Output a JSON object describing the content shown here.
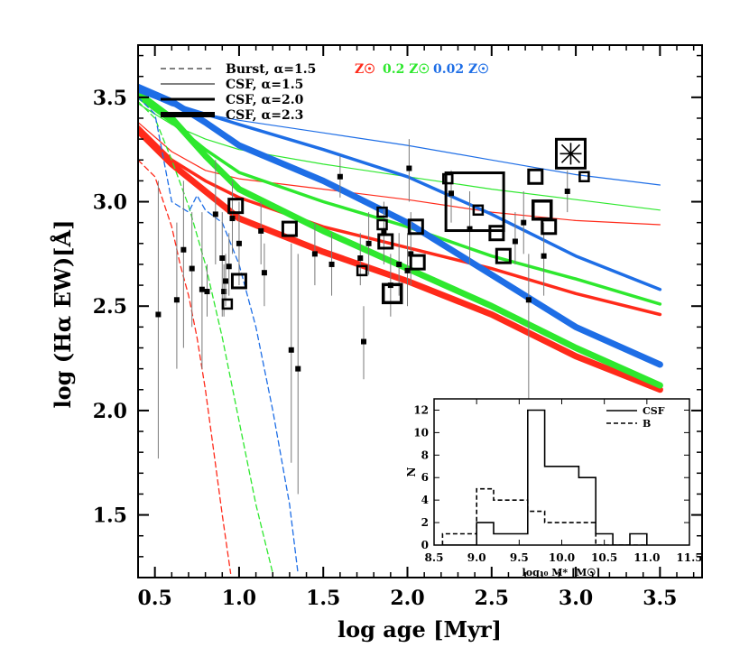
{
  "chart_data": [
    {
      "type": "line",
      "title": "",
      "xlabel": "log age [Myr]",
      "ylabel": "log (Hα EW)[Å]",
      "xlim": [
        0.4,
        3.75
      ],
      "ylim": [
        1.2,
        3.75
      ],
      "xticks": [
        0.5,
        1.0,
        1.5,
        2.0,
        2.5,
        3.0,
        3.5
      ],
      "xtick_labels": [
        "0.5",
        "1.0",
        "1.5",
        "2.0",
        "2.5",
        "3.0",
        "3.5"
      ],
      "yticks": [
        1.5,
        2.0,
        2.5,
        3.0,
        3.5
      ],
      "ytick_labels": [
        "1.5",
        "2.0",
        "2.5",
        "3.0",
        "3.5"
      ],
      "grid": false,
      "legend": {
        "placement": "top-left",
        "linestyle_entries": [
          "Burst, α=1.5",
          "CSF, α=1.5",
          "CSF, α=2.0",
          "CSF, α=2.3"
        ],
        "metallicity_entries": [
          {
            "label": "Z☉",
            "color": "#ff2a1a"
          },
          {
            "label": "0.2 Z☉",
            "color": "#2ee82e"
          },
          {
            "label": "0.02 Z☉",
            "color": "#1e6ee6"
          }
        ]
      },
      "colors": {
        "Z_sun": "#ff2a1a",
        "Z_0.2": "#2ee82e",
        "Z_0.02": "#1e6ee6",
        "data": "#000000",
        "errorbar": "#7a7a7a"
      },
      "series": [
        {
          "metallicity": "Z☉",
          "style": "CSF, α=1.5",
          "x": [
            0.4,
            0.6,
            0.8,
            1.0,
            1.5,
            2.0,
            2.5,
            3.0,
            3.5
          ],
          "y": [
            3.38,
            3.24,
            3.15,
            3.11,
            3.06,
            3.01,
            2.95,
            2.91,
            2.89
          ]
        },
        {
          "metallicity": "Z☉",
          "style": "CSF, α=2.0",
          "x": [
            0.4,
            0.6,
            0.8,
            1.0,
            1.5,
            2.0,
            2.5,
            3.0,
            3.5
          ],
          "y": [
            3.36,
            3.2,
            3.1,
            3.02,
            2.88,
            2.78,
            2.68,
            2.56,
            2.46
          ]
        },
        {
          "metallicity": "Z☉",
          "style": "CSF, α=2.3",
          "x": [
            0.4,
            0.6,
            0.8,
            1.0,
            1.5,
            2.0,
            2.5,
            3.0,
            3.5
          ],
          "y": [
            3.34,
            3.18,
            3.05,
            2.92,
            2.76,
            2.62,
            2.46,
            2.26,
            2.1
          ]
        },
        {
          "metallicity": "0.2 Z☉",
          "style": "CSF, α=1.5",
          "x": [
            0.4,
            0.6,
            0.8,
            1.0,
            1.5,
            2.0,
            2.5,
            3.0,
            3.5
          ],
          "y": [
            3.47,
            3.37,
            3.3,
            3.25,
            3.18,
            3.12,
            3.06,
            3.01,
            2.96
          ]
        },
        {
          "metallicity": "0.2 Z☉",
          "style": "CSF, α=2.0",
          "x": [
            0.4,
            0.6,
            0.8,
            1.0,
            1.5,
            2.0,
            2.5,
            3.0,
            3.5
          ],
          "y": [
            3.5,
            3.38,
            3.25,
            3.14,
            3.0,
            2.88,
            2.74,
            2.63,
            2.51
          ]
        },
        {
          "metallicity": "0.2 Z☉",
          "style": "CSF, α=2.3",
          "x": [
            0.4,
            0.6,
            0.8,
            1.0,
            1.5,
            2.0,
            2.5,
            3.0,
            3.5
          ],
          "y": [
            3.52,
            3.4,
            3.22,
            3.06,
            2.86,
            2.68,
            2.5,
            2.3,
            2.12
          ]
        },
        {
          "metallicity": "0.02 Z☉",
          "style": "CSF, α=1.5",
          "x": [
            0.4,
            0.6,
            0.8,
            1.0,
            1.5,
            2.0,
            2.5,
            3.0,
            3.5
          ],
          "y": [
            3.53,
            3.46,
            3.42,
            3.39,
            3.33,
            3.27,
            3.2,
            3.13,
            3.08
          ]
        },
        {
          "metallicity": "0.02 Z☉",
          "style": "CSF, α=2.0",
          "x": [
            0.4,
            0.6,
            0.8,
            1.0,
            1.5,
            2.0,
            2.5,
            3.0,
            3.5
          ],
          "y": [
            3.53,
            3.47,
            3.42,
            3.37,
            3.25,
            3.12,
            2.94,
            2.74,
            2.58
          ]
        },
        {
          "metallicity": "0.02 Z☉",
          "style": "CSF, α=2.3",
          "x": [
            0.4,
            0.6,
            0.8,
            1.0,
            1.5,
            2.0,
            2.5,
            3.0,
            3.5
          ],
          "y": [
            3.55,
            3.48,
            3.38,
            3.27,
            3.1,
            2.9,
            2.65,
            2.4,
            2.22
          ]
        },
        {
          "metallicity": "Z☉",
          "style": "Burst, α=1.5",
          "x": [
            0.4,
            0.5,
            0.55,
            0.6,
            0.65,
            0.7,
            0.75,
            0.8,
            0.85,
            0.9,
            0.95
          ],
          "y": [
            3.2,
            3.12,
            3.0,
            2.88,
            2.7,
            2.55,
            2.35,
            2.1,
            1.8,
            1.5,
            1.22
          ]
        },
        {
          "metallicity": "0.2 Z☉",
          "style": "Burst, α=1.5",
          "x": [
            0.4,
            0.5,
            0.6,
            0.7,
            0.8,
            0.9,
            1.0,
            1.1,
            1.2
          ],
          "y": [
            3.48,
            3.4,
            3.2,
            2.98,
            2.7,
            2.35,
            1.95,
            1.55,
            1.22
          ]
        },
        {
          "metallicity": "0.02 Z☉",
          "style": "Burst, α=1.5",
          "x": [
            0.4,
            0.5,
            0.6,
            0.7,
            0.75,
            0.8,
            0.9,
            1.0,
            1.1,
            1.2,
            1.3,
            1.35
          ],
          "y": [
            3.5,
            3.42,
            3.0,
            2.95,
            3.03,
            2.96,
            2.9,
            2.7,
            2.4,
            2.0,
            1.55,
            1.22
          ]
        }
      ],
      "points_small": [
        {
          "x": 0.52,
          "y": 2.46,
          "ylo": 1.77,
          "yhi": 3.1
        },
        {
          "x": 0.63,
          "y": 2.53,
          "ylo": 2.2,
          "yhi": 2.9
        },
        {
          "x": 0.67,
          "y": 2.77,
          "ylo": 2.3,
          "yhi": 3.1
        },
        {
          "x": 0.72,
          "y": 2.68,
          "ylo": 2.4,
          "yhi": 2.95
        },
        {
          "x": 0.78,
          "y": 2.58,
          "ylo": 2.2,
          "yhi": 2.95
        },
        {
          "x": 0.81,
          "y": 2.57,
          "ylo": 2.45,
          "yhi": 2.7
        },
        {
          "x": 0.86,
          "y": 2.94,
          "ylo": 2.7,
          "yhi": 3.2
        },
        {
          "x": 0.9,
          "y": 2.73,
          "ylo": 2.45,
          "yhi": 2.95
        },
        {
          "x": 0.91,
          "y": 2.57,
          "ylo": 2.45,
          "yhi": 2.7
        },
        {
          "x": 0.92,
          "y": 2.62,
          "ylo": 2.5,
          "yhi": 2.75
        },
        {
          "x": 0.94,
          "y": 2.69,
          "ylo": 2.55,
          "yhi": 2.85
        },
        {
          "x": 0.96,
          "y": 2.92,
          "ylo": 2.75,
          "yhi": 3.1
        },
        {
          "x": 1.0,
          "y": 2.8,
          "ylo": 2.6,
          "yhi": 3.0
        },
        {
          "x": 1.13,
          "y": 2.86,
          "ylo": 2.7,
          "yhi": 3.0
        },
        {
          "x": 1.15,
          "y": 2.66,
          "ylo": 2.5,
          "yhi": 2.8
        },
        {
          "x": 1.31,
          "y": 2.29,
          "ylo": 1.75,
          "yhi": 2.8
        },
        {
          "x": 1.35,
          "y": 2.2,
          "ylo": 1.6,
          "yhi": 2.75
        },
        {
          "x": 1.45,
          "y": 2.75,
          "ylo": 2.6,
          "yhi": 2.9
        },
        {
          "x": 1.55,
          "y": 2.7,
          "ylo": 2.55,
          "yhi": 2.85
        },
        {
          "x": 1.6,
          "y": 3.12,
          "ylo": 3.02,
          "yhi": 3.22
        },
        {
          "x": 1.72,
          "y": 2.73,
          "ylo": 2.6,
          "yhi": 2.85
        },
        {
          "x": 1.74,
          "y": 2.33,
          "ylo": 2.15,
          "yhi": 2.5
        },
        {
          "x": 1.77,
          "y": 2.8,
          "ylo": 2.65,
          "yhi": 2.95
        },
        {
          "x": 1.86,
          "y": 2.86,
          "ylo": 2.7,
          "yhi": 3.0
        },
        {
          "x": 1.9,
          "y": 2.6,
          "ylo": 2.45,
          "yhi": 2.75
        },
        {
          "x": 1.95,
          "y": 2.7,
          "ylo": 2.55,
          "yhi": 2.85
        },
        {
          "x": 2.0,
          "y": 2.67,
          "ylo": 2.5,
          "yhi": 2.85
        },
        {
          "x": 2.01,
          "y": 3.16,
          "ylo": 3.0,
          "yhi": 3.3
        },
        {
          "x": 2.02,
          "y": 2.75,
          "ylo": 2.6,
          "yhi": 2.95
        },
        {
          "x": 2.26,
          "y": 3.04,
          "ylo": 2.9,
          "yhi": 3.15
        },
        {
          "x": 2.37,
          "y": 2.87,
          "ylo": 2.7,
          "yhi": 3.05
        },
        {
          "x": 2.64,
          "y": 2.81,
          "ylo": 2.7,
          "yhi": 2.95
        },
        {
          "x": 2.69,
          "y": 2.9,
          "ylo": 2.75,
          "yhi": 3.05
        },
        {
          "x": 2.72,
          "y": 2.53,
          "ylo": 1.97,
          "yhi": 2.75
        },
        {
          "x": 2.81,
          "y": 2.74,
          "ylo": 2.55,
          "yhi": 2.9
        },
        {
          "x": 2.95,
          "y": 3.05,
          "ylo": 2.95,
          "yhi": 3.15
        }
      ],
      "points_boxes": [
        {
          "x": 0.93,
          "y": 2.51,
          "size": "small"
        },
        {
          "x": 0.98,
          "y": 2.98,
          "size": "medium"
        },
        {
          "x": 1.0,
          "y": 2.62,
          "size": "medium"
        },
        {
          "x": 1.3,
          "y": 2.87,
          "size": "medium"
        },
        {
          "x": 1.73,
          "y": 2.67,
          "size": "small"
        },
        {
          "x": 1.85,
          "y": 2.95,
          "size": "small"
        },
        {
          "x": 1.85,
          "y": 2.89,
          "size": "small"
        },
        {
          "x": 1.87,
          "y": 2.81,
          "size": "medium"
        },
        {
          "x": 1.91,
          "y": 2.56,
          "size": "large"
        },
        {
          "x": 2.05,
          "y": 2.88,
          "size": "medium"
        },
        {
          "x": 2.06,
          "y": 2.71,
          "size": "medium"
        },
        {
          "x": 2.24,
          "y": 3.11,
          "size": "small"
        },
        {
          "x": 2.42,
          "y": 2.96,
          "size": "small"
        },
        {
          "x": 2.53,
          "y": 2.85,
          "size": "medium"
        },
        {
          "x": 2.57,
          "y": 2.74,
          "size": "medium"
        },
        {
          "x": 2.76,
          "y": 3.12,
          "size": "medium"
        },
        {
          "x": 2.8,
          "y": 2.96,
          "size": "large"
        },
        {
          "x": 2.84,
          "y": 2.88,
          "size": "medium"
        },
        {
          "x": 3.05,
          "y": 3.12,
          "size": "small"
        },
        {
          "x": 2.4,
          "y": 3.0,
          "size": "xlarge"
        }
      ],
      "special_point": {
        "x": 2.97,
        "y": 3.23,
        "marker": "boxed-asterisk"
      }
    },
    {
      "type": "histogram",
      "title": "",
      "xlabel": "log₁₀ M* [M☉]",
      "ylabel": "N",
      "xlim": [
        8.5,
        11.5
      ],
      "ylim": [
        0,
        13
      ],
      "xticks": [
        8.5,
        9.0,
        9.5,
        10.0,
        10.5,
        11.0,
        11.5
      ],
      "xtick_labels": [
        "8.5",
        "9.0",
        "9.5",
        "10.0",
        "10.5",
        "11.0",
        "11.5"
      ],
      "yticks": [
        0,
        2,
        4,
        6,
        8,
        10,
        12
      ],
      "ytick_labels": [
        "0",
        "2",
        "4",
        "6",
        "8",
        "10",
        "12"
      ],
      "legend": {
        "placement": "top-right",
        "entries": [
          "CSF",
          "B"
        ]
      },
      "bin_edges": [
        8.6,
        8.8,
        9.0,
        9.2,
        9.4,
        9.6,
        9.8,
        10.0,
        10.2,
        10.4,
        10.6,
        10.8,
        11.0
      ],
      "series": [
        {
          "name": "CSF",
          "linestyle": "solid",
          "values": [
            0,
            0,
            2,
            1,
            1,
            12,
            7,
            7,
            6,
            1,
            0,
            1
          ]
        },
        {
          "name": "B",
          "linestyle": "dashed",
          "values": [
            1,
            1,
            5,
            4,
            4,
            3,
            2,
            2,
            2,
            0,
            0,
            0
          ]
        }
      ]
    }
  ]
}
